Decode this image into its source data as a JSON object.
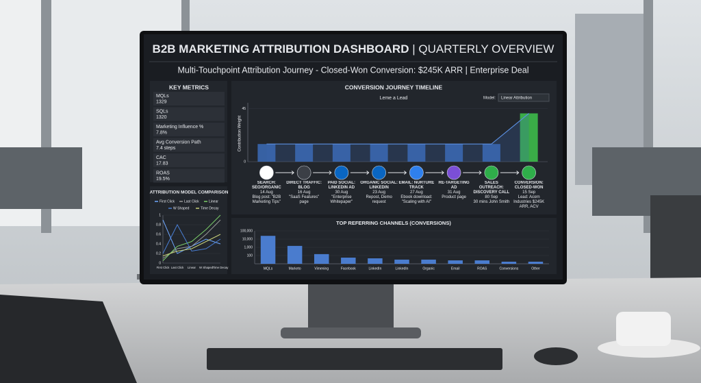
{
  "header": {
    "title": "B2B MARKETING ATTRIBUTION DASHBOARD",
    "title_suffix": "| QUARTERLY OVERVIEW",
    "subtitle": "Multi-Touchpoint Attribution Journey - Closed-Won Conversion: $245K ARR | Enterprise Deal"
  },
  "key_metrics": {
    "title": "KEY METRICS",
    "items": [
      {
        "label": "MQLs",
        "value": "1329"
      },
      {
        "label": "SQLs",
        "value": "1320"
      },
      {
        "label": "Marketing Influence %",
        "value": "7.8%"
      },
      {
        "label": "Avg Conversion Path",
        "value": "7.4 steps"
      },
      {
        "label": "CAC",
        "value": "17.83"
      },
      {
        "label": "ROAS",
        "value": "19.5%"
      }
    ]
  },
  "journey": {
    "steps": [
      {
        "title": "SEARCH: SEO/ORGANIC",
        "date": "14 Aug",
        "detail": "Blog post: \"B2B Marketing Tips\""
      },
      {
        "title": "DIRECT TRAFFIC: BLOG",
        "date": "16 Aug",
        "detail": "\"SaaS Features\" page"
      },
      {
        "title": "PAID SOCIAL: LINKEDIN AD",
        "date": "30 Aug",
        "detail": "\"Enterprise Whitepaper\""
      },
      {
        "title": "ORGANIC SOCIAL: LINKEDIN",
        "date": "23 Aug",
        "detail": "Repost, Demo request"
      },
      {
        "title": "EMAIL: NURTURE TRACK",
        "date": "27 Aug",
        "detail": "Ebook download: \"Scaling with AI\""
      },
      {
        "title": "RE-TARGETING AD",
        "date": "31 Aug",
        "detail": "Product page"
      },
      {
        "title": "SALES OUTREACH: DISCOVERY CALL",
        "date": "80 Sep",
        "detail": "30 mins John Smith"
      },
      {
        "title": "CONVERSION: CLOSED-WON",
        "date": "15 Sep",
        "detail": "Lead: Acorn Industries $245K ARR, ACV"
      }
    ]
  },
  "chart_data": [
    {
      "type": "bar",
      "title": "CONVERSION JOURNEY TIMELINE",
      "subtitle": "Leme a Lead",
      "model_label": "Model:",
      "model": "Linear Attribution",
      "y_label": "Contribution Weight",
      "values": [
        15,
        15,
        15,
        15,
        15,
        15,
        15,
        41
      ],
      "colors": [
        "#3a68b0",
        "#3a68b0",
        "#3a68b0",
        "#3a68b0",
        "#3a68b0",
        "#3a68b0",
        "#3a68b0",
        "#3dbb4a"
      ],
      "area": true,
      "ylim": [
        0,
        50
      ],
      "yticks": [
        0,
        45
      ]
    },
    {
      "type": "line",
      "title": "ATTRIBUTION MODEL COMPARISON",
      "categories": [
        "First Click",
        "Last Click",
        "Linear",
        "W Shaped",
        "Time Decay"
      ],
      "series": [
        {
          "name": "First Click",
          "color": "#6fa8ff",
          "values": [
            0.9,
            0.2,
            0.35,
            0.5,
            0.4
          ]
        },
        {
          "name": "Last Click",
          "color": "#9a9a9a",
          "values": [
            0.1,
            0.3,
            0.35,
            0.6,
            0.9
          ]
        },
        {
          "name": "Linear",
          "color": "#7ccf6a",
          "values": [
            0.05,
            0.35,
            0.45,
            0.7,
            1
          ]
        },
        {
          "name": "W Shaped",
          "color": "#4a7fd4",
          "values": [
            0.2,
            0.8,
            0.25,
            0.3,
            0.5
          ]
        },
        {
          "name": "Time Decay",
          "color": "#c9d27a",
          "values": [
            0.15,
            0.25,
            0.3,
            0.45,
            0.6
          ]
        }
      ],
      "ylim": [
        0,
        1
      ],
      "yticks": [
        0,
        0.2,
        0.4,
        0.6,
        0.8,
        1
      ]
    },
    {
      "type": "bar",
      "title": "TOP REFERRING CHANNELS (CONVERSIONS)",
      "categories": [
        "MQLs",
        "Marketo",
        "Vimening",
        "Facebook",
        "LinkedIn",
        "LinkedIn",
        "Organic",
        "Email",
        "ROAS",
        "Conversions",
        "Other"
      ],
      "values": [
        25000,
        1500,
        150,
        56,
        46,
        32,
        32,
        26,
        26,
        18,
        18
      ],
      "color": "#4f86e0",
      "log_scale": true,
      "ylim": [
        10,
        100000
      ],
      "yticks": [
        100,
        {
          "value": 1000,
          "label": "1,000"
        },
        {
          "value": 10000,
          "label": "10,000"
        },
        {
          "value": 100000,
          "label": "100,000"
        }
      ]
    }
  ]
}
